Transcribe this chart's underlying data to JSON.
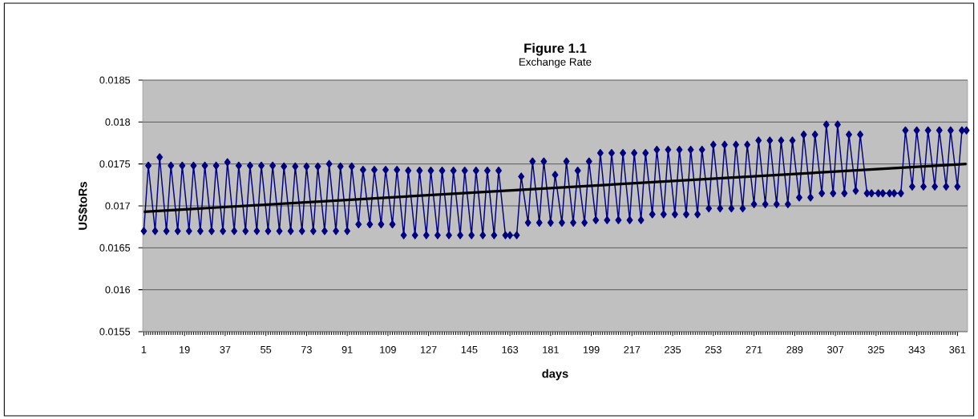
{
  "chart_data": {
    "type": "line",
    "title": "Figure 1.1",
    "subtitle": "Exchange Rate",
    "xlabel": "days",
    "ylabel": "US$toRs",
    "xlim": [
      0.5,
      365.5
    ],
    "xticks": [
      1,
      19,
      37,
      55,
      73,
      91,
      109,
      127,
      145,
      163,
      181,
      199,
      217,
      235,
      253,
      271,
      289,
      307,
      325,
      343,
      361
    ],
    "ylim": [
      0.0155,
      0.0185
    ],
    "yticks": [
      {
        "value": 0.0155,
        "label": "0.0155"
      },
      {
        "value": 0.016,
        "label": "0.016"
      },
      {
        "value": 0.0165,
        "label": "0.0165"
      },
      {
        "value": 0.017,
        "label": "0.017"
      },
      {
        "value": 0.0175,
        "label": "0.0175"
      },
      {
        "value": 0.018,
        "label": "0.018"
      },
      {
        "value": 0.0185,
        "label": "0.0185"
      }
    ],
    "grid": "y",
    "series": [
      {
        "color": "#000080",
        "marker": "diamond",
        "x": [
          1,
          3,
          6,
          8,
          11,
          13,
          16,
          18,
          21,
          23,
          26,
          28,
          31,
          33,
          36,
          38,
          41,
          43,
          46,
          48,
          51,
          53,
          56,
          58,
          61,
          63,
          66,
          68,
          71,
          73,
          76,
          78,
          81,
          83,
          86,
          88,
          91,
          93,
          96,
          98,
          101,
          103,
          106,
          108,
          111,
          113,
          116,
          118,
          121,
          123,
          126,
          128,
          131,
          133,
          136,
          138,
          141,
          143,
          146,
          148,
          151,
          153,
          156,
          158,
          161,
          163,
          166,
          168,
          171,
          173,
          176,
          178,
          181,
          183,
          186,
          188,
          191,
          193,
          196,
          198,
          201,
          203,
          206,
          208,
          211,
          213,
          216,
          218,
          221,
          223,
          226,
          228,
          231,
          233,
          236,
          238,
          241,
          243,
          246,
          248,
          251,
          253,
          256,
          258,
          261,
          263,
          266,
          268,
          271,
          273,
          276,
          278,
          281,
          283,
          286,
          288,
          291,
          293,
          296,
          298,
          301,
          303,
          306,
          308,
          311,
          313,
          316,
          318,
          321,
          323,
          326,
          328,
          331,
          333,
          336,
          338,
          341,
          343,
          346,
          348,
          351,
          353,
          356,
          358,
          361,
          363,
          365
        ],
        "values": [
          0.0167,
          0.01748,
          0.0167,
          0.01758,
          0.0167,
          0.01748,
          0.0167,
          0.01748,
          0.0167,
          0.01748,
          0.0167,
          0.01748,
          0.0167,
          0.01748,
          0.0167,
          0.01752,
          0.0167,
          0.01748,
          0.0167,
          0.01748,
          0.0167,
          0.01748,
          0.0167,
          0.01748,
          0.0167,
          0.01747,
          0.0167,
          0.01747,
          0.0167,
          0.01747,
          0.0167,
          0.01747,
          0.0167,
          0.0175,
          0.0167,
          0.01747,
          0.0167,
          0.01747,
          0.01678,
          0.01743,
          0.01678,
          0.01743,
          0.01678,
          0.01743,
          0.01678,
          0.01743,
          0.01665,
          0.01742,
          0.01665,
          0.01742,
          0.01665,
          0.01742,
          0.01665,
          0.01742,
          0.01665,
          0.01742,
          0.01665,
          0.01742,
          0.01665,
          0.01742,
          0.01665,
          0.01742,
          0.01665,
          0.01742,
          0.01665,
          0.01665,
          0.01665,
          0.01735,
          0.0168,
          0.01753,
          0.0168,
          0.01753,
          0.0168,
          0.01737,
          0.0168,
          0.01753,
          0.0168,
          0.01742,
          0.0168,
          0.01753,
          0.01683,
          0.01763,
          0.01683,
          0.01763,
          0.01683,
          0.01763,
          0.01683,
          0.01763,
          0.01683,
          0.01763,
          0.0169,
          0.01767,
          0.0169,
          0.01767,
          0.0169,
          0.01767,
          0.0169,
          0.01767,
          0.0169,
          0.01767,
          0.01697,
          0.01773,
          0.01697,
          0.01773,
          0.01697,
          0.01773,
          0.01697,
          0.01773,
          0.01702,
          0.01778,
          0.01702,
          0.01778,
          0.01702,
          0.01778,
          0.01702,
          0.01778,
          0.0171,
          0.01785,
          0.0171,
          0.01785,
          0.01715,
          0.01797,
          0.01715,
          0.01797,
          0.01715,
          0.01785,
          0.01718,
          0.01785,
          0.01715,
          0.01715,
          0.01715,
          0.01715,
          0.01715,
          0.01715,
          0.01715,
          0.0179,
          0.01723,
          0.0179,
          0.01723,
          0.0179,
          0.01723,
          0.0179,
          0.01723,
          0.0179,
          0.01723,
          0.0179,
          0.0179
        ]
      },
      {
        "color": "#000000",
        "marker": "none",
        "x": [
          1,
          365
        ],
        "values": [
          0.01693,
          0.0175
        ]
      }
    ]
  }
}
